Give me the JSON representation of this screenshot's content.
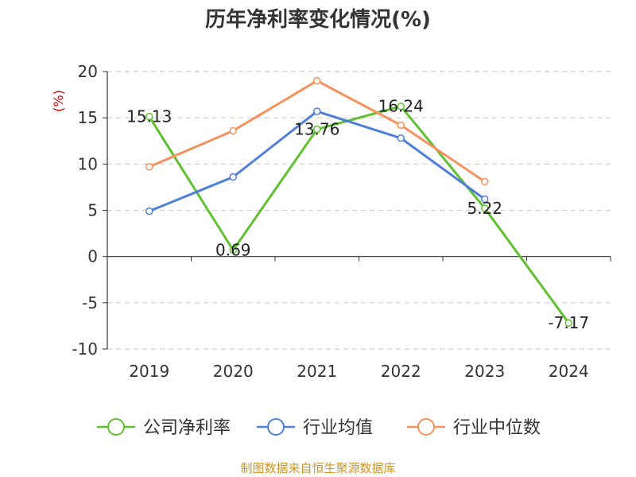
{
  "chart_data": {
    "type": "line",
    "title": "历年净利率变化情况(%)",
    "ylabel": "(%)",
    "xlabel": "",
    "categories": [
      "2019",
      "2020",
      "2021",
      "2022",
      "2023",
      "2024"
    ],
    "ylim": [
      -10,
      20
    ],
    "yticks": [
      "20",
      "15",
      "10",
      "5",
      "0",
      "-5",
      "-10"
    ],
    "grid": true,
    "legend_position": "bottom",
    "series": [
      {
        "name": "公司净利率",
        "color": "#5fc12f",
        "values": [
          15.13,
          0.69,
          13.76,
          16.24,
          5.22,
          -7.17
        ],
        "labels": [
          "15.13",
          "0.69",
          "13.76",
          "16.24",
          "5.22",
          "-7.17"
        ]
      },
      {
        "name": "行业均值",
        "color": "#4f7fd9",
        "values": [
          4.9,
          8.6,
          15.7,
          12.8,
          6.2,
          null
        ]
      },
      {
        "name": "行业中位数",
        "color": "#f5915b",
        "values": [
          9.7,
          13.6,
          19.0,
          14.2,
          8.1,
          null
        ]
      }
    ]
  },
  "colors": {
    "axis_label": "#cc0000",
    "source": "#c8962b",
    "title": "#333333"
  },
  "source": "制图数据来自恒生聚源数据库"
}
